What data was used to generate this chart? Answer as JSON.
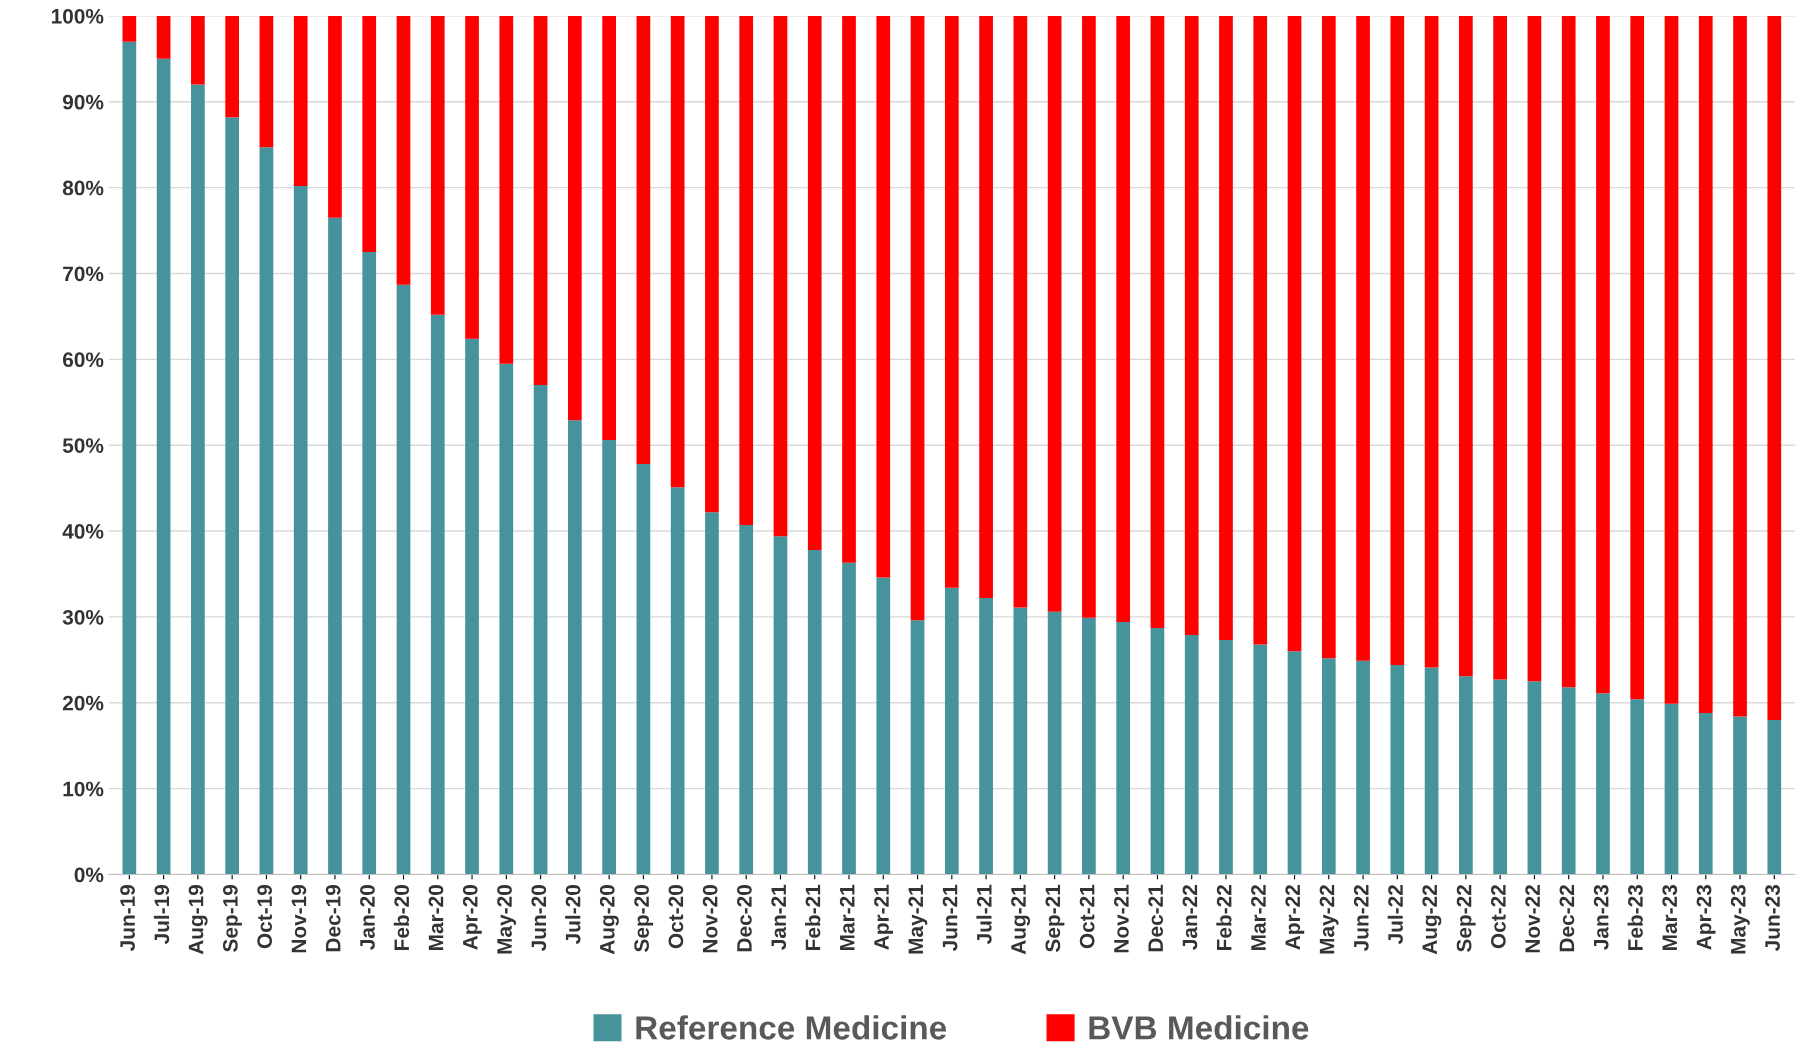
{
  "chart_data": {
    "type": "bar",
    "stacked": true,
    "grid": "y",
    "legend": "bottom",
    "categories": [
      "Jun-19",
      "Jul-19",
      "Aug-19",
      "Sep-19",
      "Oct-19",
      "Nov-19",
      "Dec-19",
      "Jan-20",
      "Feb-20",
      "Mar-20",
      "Apr-20",
      "May-20",
      "Jun-20",
      "Jul-20",
      "Aug-20",
      "Sep-20",
      "Oct-20",
      "Nov-20",
      "Dec-20",
      "Jan-21",
      "Feb-21",
      "Mar-21",
      "Apr-21",
      "May-21",
      "Jun-21",
      "Jul-21",
      "Aug-21",
      "Sep-21",
      "Oct-21",
      "Nov-21",
      "Dec-21",
      "Jan-22",
      "Feb-22",
      "Mar-22",
      "Apr-22",
      "May-22",
      "Jun-22",
      "Jul-22",
      "Aug-22",
      "Sep-22",
      "Oct-22",
      "Nov-22",
      "Dec-22",
      "Jan-23",
      "Feb-23",
      "Mar-23",
      "Apr-23",
      "May-23",
      "Jun-23"
    ],
    "series": [
      {
        "name": "Reference Medicine",
        "color": "#46939c",
        "values": [
          97.0,
          95.0,
          92.0,
          88.2,
          84.7,
          80.2,
          76.5,
          72.5,
          68.7,
          65.2,
          62.4,
          59.5,
          57.0,
          52.9,
          50.6,
          47.8,
          45.1,
          42.2,
          40.7,
          39.4,
          37.8,
          36.3,
          34.6,
          29.6,
          33.4,
          32.2,
          31.1,
          30.6,
          29.9,
          29.4,
          28.7,
          27.9,
          27.3,
          26.8,
          26.0,
          25.2,
          24.9,
          24.4,
          24.1,
          23.1,
          22.7,
          22.5,
          21.8,
          21.1,
          20.4,
          19.9,
          18.8,
          18.4,
          18.0
        ]
      },
      {
        "name": "BVB Medicine",
        "color": "#ff0000",
        "values": [
          3.0,
          5.0,
          8.0,
          11.8,
          15.3,
          19.8,
          23.5,
          27.5,
          31.3,
          34.8,
          37.6,
          40.5,
          43.0,
          47.1,
          49.4,
          52.2,
          54.9,
          57.8,
          59.3,
          60.6,
          62.2,
          63.7,
          65.4,
          70.4,
          66.6,
          67.8,
          68.9,
          69.4,
          70.1,
          70.6,
          71.3,
          72.1,
          72.7,
          73.2,
          74.0,
          74.8,
          75.1,
          75.6,
          75.9,
          76.9,
          77.3,
          77.5,
          78.2,
          78.9,
          79.6,
          80.1,
          81.2,
          81.6,
          82.0
        ]
      }
    ],
    "ylim": [
      0,
      100
    ],
    "yticks": [
      {
        "value": 0,
        "label": "0%"
      },
      {
        "value": 10,
        "label": "10%"
      },
      {
        "value": 20,
        "label": "20%"
      },
      {
        "value": 30,
        "label": "30%"
      },
      {
        "value": 40,
        "label": "40%"
      },
      {
        "value": 50,
        "label": "50%"
      },
      {
        "value": 60,
        "label": "60%"
      },
      {
        "value": 70,
        "label": "70%"
      },
      {
        "value": 80,
        "label": "80%"
      },
      {
        "value": 90,
        "label": "90%"
      },
      {
        "value": 100,
        "label": "100%"
      }
    ]
  }
}
